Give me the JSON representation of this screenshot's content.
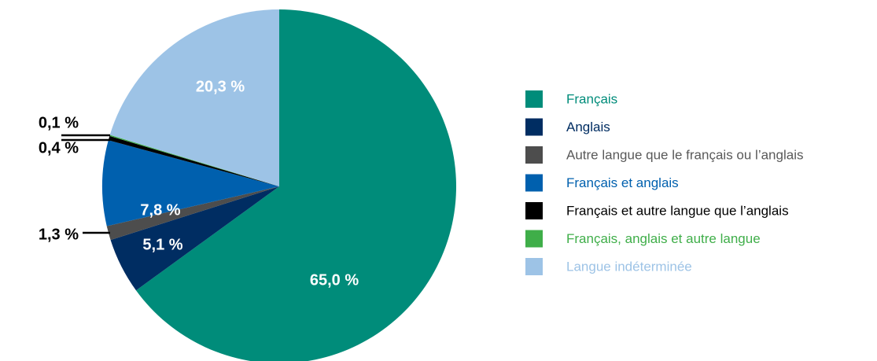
{
  "chart_data": {
    "type": "pie",
    "categories": [
      "Français",
      "Anglais",
      "Autre langue que le français ou l’anglais",
      "Français et anglais",
      "Français et autre langue que l’anglais",
      "Français, anglais et autre langue",
      "Langue indéterminée"
    ],
    "values": [
      65.0,
      5.1,
      1.3,
      7.8,
      0.4,
      0.1,
      20.3
    ],
    "value_labels": [
      "65,0 %",
      "5,1 %",
      "1,3 %",
      "7,8 %",
      "0,4 %",
      "0,1 %",
      "20,3 %"
    ],
    "colors": [
      "#008c7a",
      "#002d62",
      "#4d4d4d",
      "#0060ae",
      "#000000",
      "#3fae49",
      "#9dc3e6"
    ],
    "legend": "right"
  }
}
